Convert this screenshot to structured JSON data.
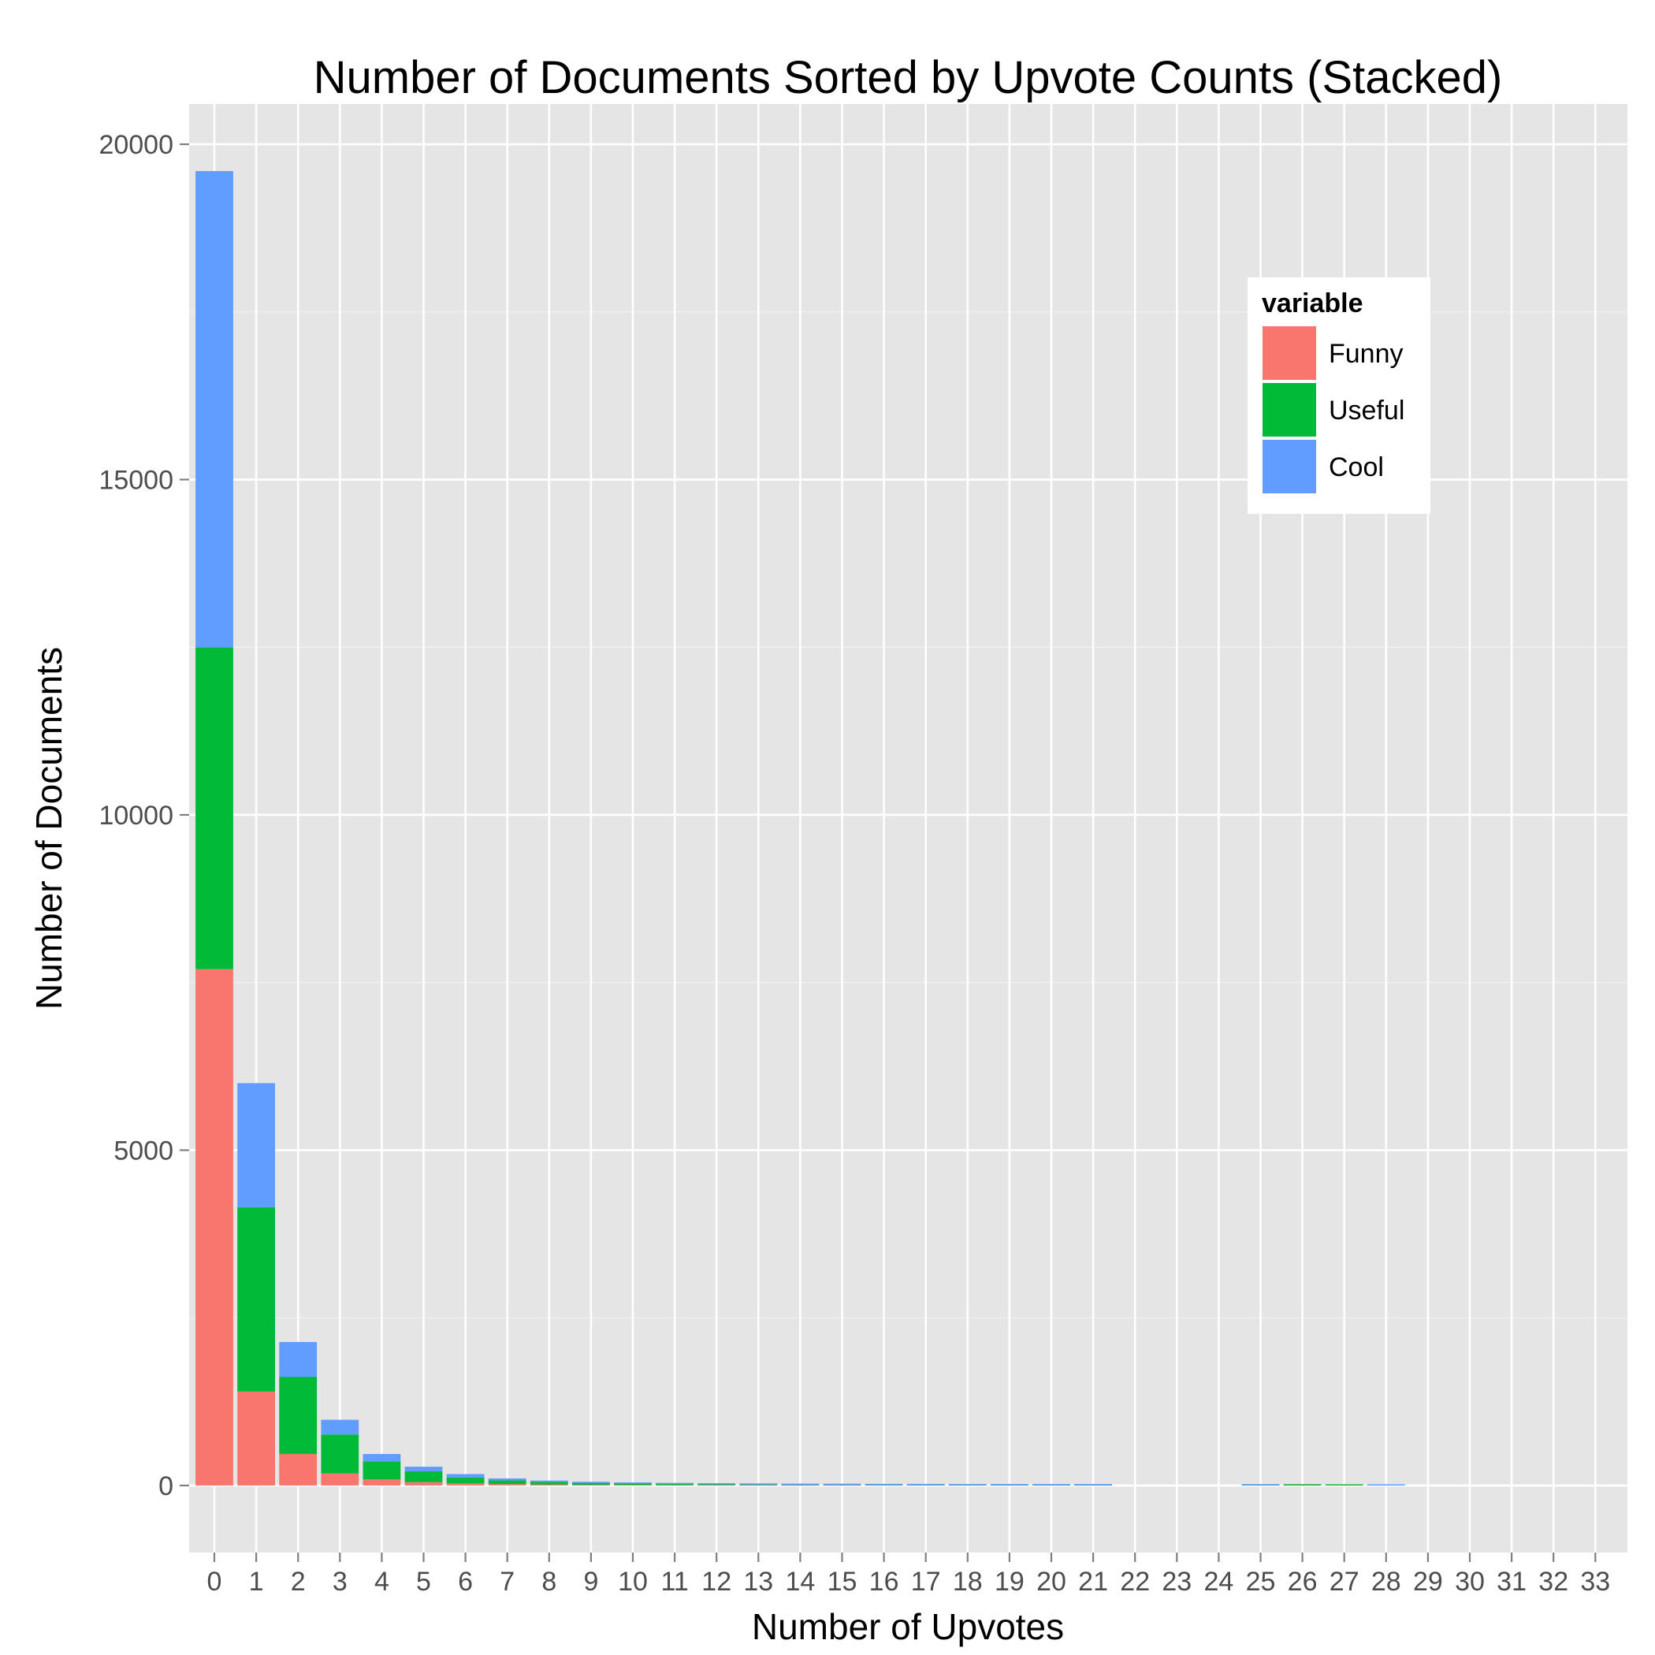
{
  "chart_data": {
    "type": "bar",
    "stacked": true,
    "title": "Number of Documents Sorted by Upvote Counts (Stacked)",
    "xlabel": "Number of Upvotes",
    "ylabel": "Number of Documents",
    "ylim": [
      -1000,
      20600
    ],
    "yticks": [
      0,
      5000,
      10000,
      15000,
      20000
    ],
    "yticks_labels": [
      "0",
      "5000",
      "10000",
      "15000",
      "20000"
    ],
    "grid": true,
    "legend": {
      "title": "variable",
      "position": "top-right (inside plot)"
    },
    "categories": [
      "0",
      "1",
      "2",
      "3",
      "4",
      "5",
      "6",
      "7",
      "8",
      "9",
      "10",
      "11",
      "12",
      "13",
      "14",
      "15",
      "16",
      "17",
      "18",
      "19",
      "20",
      "21",
      "22",
      "23",
      "24",
      "25",
      "26",
      "27",
      "28",
      "29",
      "30",
      "31",
      "32",
      "33"
    ],
    "series": [
      {
        "name": "Funny",
        "color": "#F8766D",
        "values": [
          7700,
          1400,
          470,
          180,
          90,
          50,
          30,
          20,
          15,
          10,
          8,
          6,
          5,
          4,
          3,
          3,
          2,
          2,
          2,
          1,
          1,
          1,
          0,
          0,
          0,
          1,
          1,
          0,
          0,
          0,
          0,
          0,
          0,
          0
        ]
      },
      {
        "name": "Useful",
        "color": "#00BA38",
        "values": [
          4800,
          2750,
          1150,
          580,
          270,
          160,
          90,
          55,
          38,
          28,
          20,
          15,
          12,
          9,
          7,
          6,
          5,
          4,
          3,
          3,
          2,
          2,
          0,
          0,
          0,
          1,
          1,
          1,
          0,
          0,
          0,
          0,
          0,
          0
        ]
      },
      {
        "name": "Cool",
        "color": "#619CFF",
        "values": [
          7100,
          1850,
          520,
          220,
          110,
          70,
          50,
          30,
          20,
          15,
          10,
          8,
          6,
          5,
          4,
          3,
          3,
          2,
          2,
          2,
          1,
          1,
          0,
          0,
          0,
          1,
          0,
          0,
          1,
          0,
          0,
          0,
          0,
          0
        ]
      }
    ]
  }
}
